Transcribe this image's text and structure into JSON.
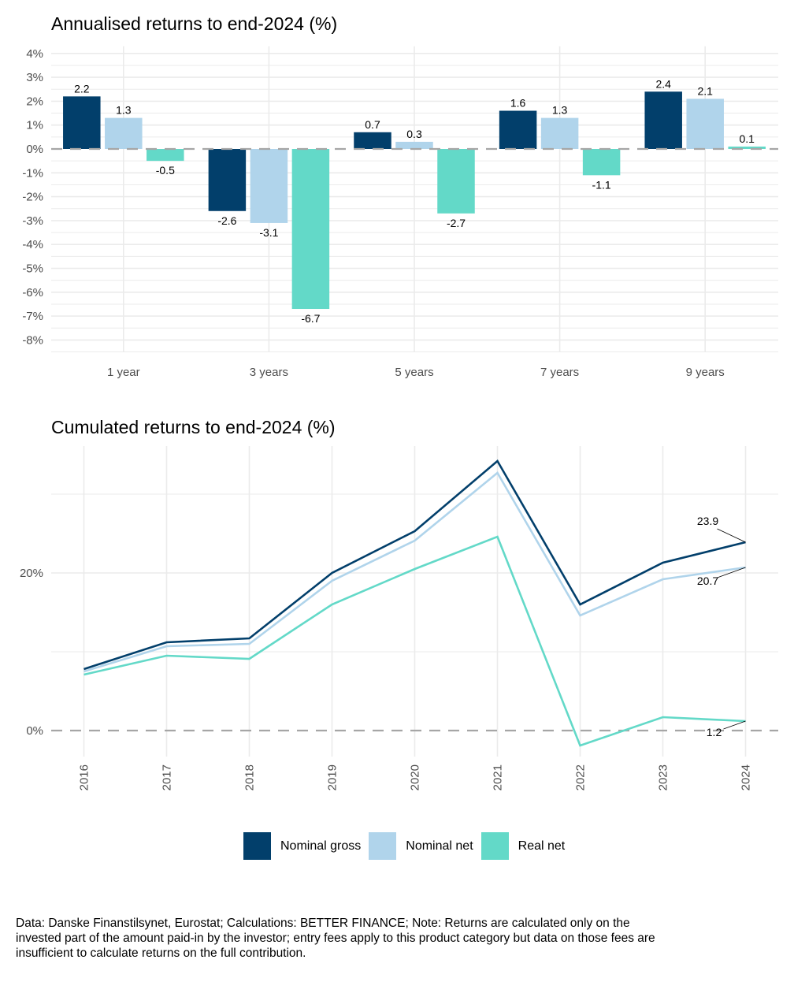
{
  "colors": {
    "nominal_gross": "#023f6b",
    "nominal_net": "#b0d4eb",
    "real_net": "#63d9c8",
    "grid": "#ebebeb",
    "zero_line": "#a6a6a6"
  },
  "legend": {
    "items": [
      {
        "label": "Nominal gross",
        "color": "#023f6b"
      },
      {
        "label": "Nominal net",
        "color": "#b0d4eb"
      },
      {
        "label": "Real net",
        "color": "#63d9c8"
      }
    ]
  },
  "footnote": "Data: Danske Finanstilsynet, Eurostat; Calculations: BETTER FINANCE; Note: Returns are calculated only on the invested part of the amount paid-in by the investor; entry fees apply to this product category but data on those fees are insufficient to calculate returns on the full contribution.",
  "chart_data": [
    {
      "type": "bar",
      "title": "Annualised returns to end-2024 (%)",
      "xlabel": "",
      "ylabel": "",
      "categories": [
        "1 year",
        "3 years",
        "5 years",
        "7 years",
        "9 years"
      ],
      "series": [
        {
          "name": "Nominal gross",
          "values": [
            2.2,
            -2.6,
            0.7,
            1.6,
            2.4
          ]
        },
        {
          "name": "Nominal net",
          "values": [
            1.3,
            -3.1,
            0.3,
            1.3,
            2.1
          ]
        },
        {
          "name": "Real net",
          "values": [
            -0.5,
            -6.7,
            -2.7,
            -1.1,
            0.1
          ]
        }
      ],
      "ylim": [
        -8.5,
        4.3
      ],
      "yticks": [
        4,
        3,
        2,
        1,
        0,
        -1,
        -2,
        -3,
        -4,
        -5,
        -6,
        -7,
        -8
      ],
      "ytick_labels": [
        "4%",
        "3%",
        "2%",
        "1%",
        "0%",
        "-1%",
        "-2%",
        "-3%",
        "-4%",
        "-5%",
        "-6%",
        "-7%",
        "-8%"
      ],
      "data_labels": true,
      "grid": true,
      "reference_line": {
        "y": 0,
        "style": "dashed"
      }
    },
    {
      "type": "line",
      "title": "Cumulated returns to end-2024 (%)",
      "xlabel": "",
      "ylabel": "",
      "x": [
        "2016",
        "2017",
        "2018",
        "2019",
        "2020",
        "2021",
        "2022",
        "2023",
        "2024"
      ],
      "series": [
        {
          "name": "Nominal gross",
          "values": [
            7.8,
            11.2,
            11.7,
            20.0,
            25.3,
            34.2,
            16.0,
            21.3,
            23.9
          ]
        },
        {
          "name": "Nominal net",
          "values": [
            7.5,
            10.7,
            11.0,
            19.0,
            24.1,
            32.7,
            14.6,
            19.2,
            20.7
          ]
        },
        {
          "name": "Real net",
          "values": [
            7.1,
            9.5,
            9.1,
            16.0,
            20.5,
            24.6,
            -1.9,
            1.7,
            1.2
          ]
        }
      ],
      "end_labels": [
        "23.9",
        "20.7",
        "1.2"
      ],
      "ylim": [
        -3,
        36
      ],
      "yticks": [
        0,
        20
      ],
      "ytick_labels": [
        "0%",
        "20%"
      ],
      "minor_gridlines": [
        10,
        30
      ],
      "grid": true,
      "reference_line": {
        "y": 0,
        "style": "dashed"
      },
      "legend_position": "bottom"
    }
  ]
}
